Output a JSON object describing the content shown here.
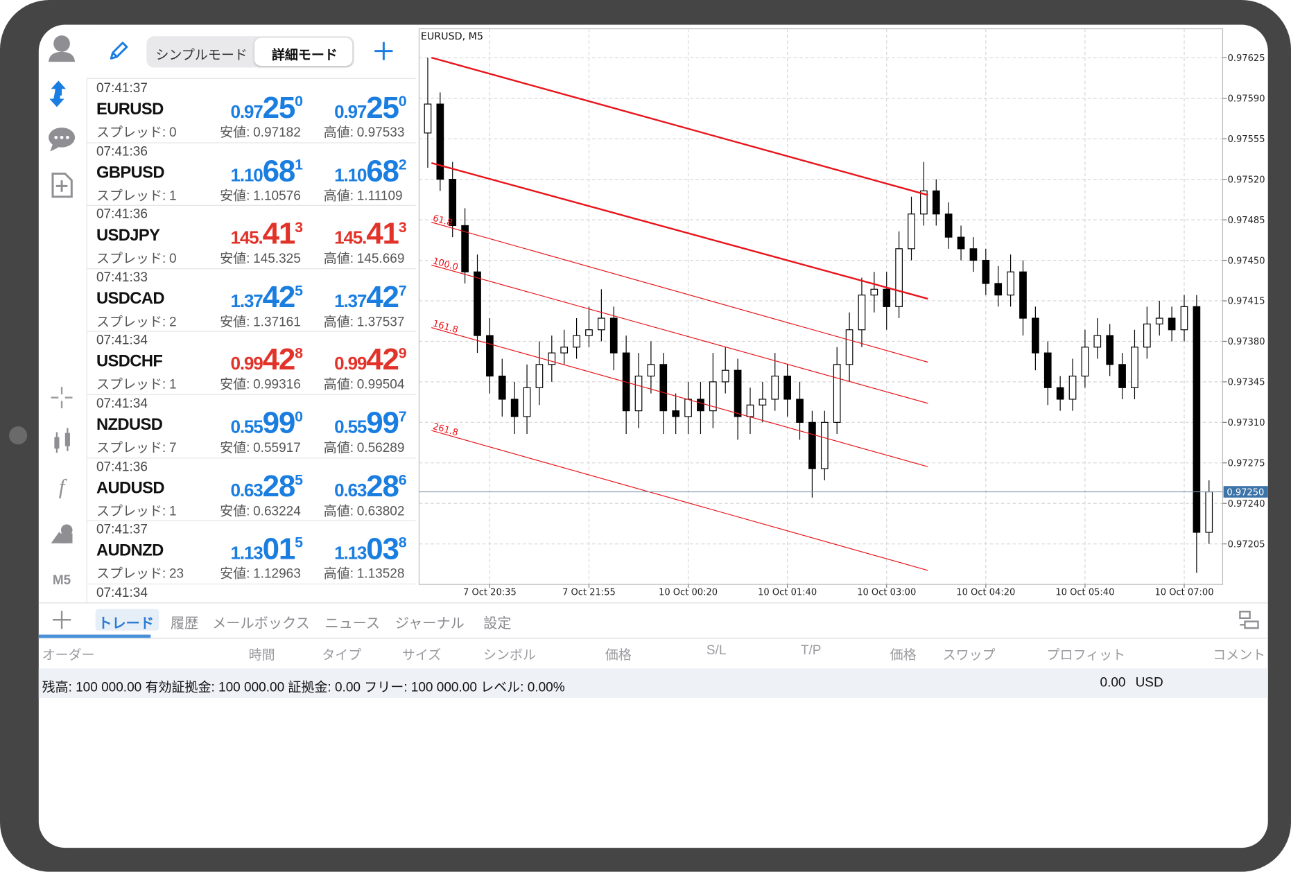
{
  "header": {
    "modes": [
      "シンプルモード",
      "詳細モード"
    ]
  },
  "sidebar": {
    "timeframe": "M5"
  },
  "quotes": {
    "spread_label": "スプレッド:",
    "low_label": "安値:",
    "high_label": "高値:",
    "partial_time": "07:41:34",
    "rows": [
      {
        "time": "07:41:37",
        "symbol": "EURUSD",
        "spread": 0,
        "direction": "up",
        "bid": [
          "0.97",
          "25",
          "0"
        ],
        "ask": [
          "0.97",
          "25",
          "0"
        ],
        "low": "0.97182",
        "high": "0.97533"
      },
      {
        "time": "07:41:36",
        "symbol": "GBPUSD",
        "spread": 1,
        "direction": "up",
        "bid": [
          "1.10",
          "68",
          "1"
        ],
        "ask": [
          "1.10",
          "68",
          "2"
        ],
        "low": "1.10576",
        "high": "1.11109"
      },
      {
        "time": "07:41:36",
        "symbol": "USDJPY",
        "spread": 0,
        "direction": "down",
        "bid": [
          "145.",
          "41",
          "3"
        ],
        "ask": [
          "145.",
          "41",
          "3"
        ],
        "low": "145.325",
        "high": "145.669"
      },
      {
        "time": "07:41:33",
        "symbol": "USDCAD",
        "spread": 2,
        "direction": "up",
        "bid": [
          "1.37",
          "42",
          "5"
        ],
        "ask": [
          "1.37",
          "42",
          "7"
        ],
        "low": "1.37161",
        "high": "1.37537"
      },
      {
        "time": "07:41:34",
        "symbol": "USDCHF",
        "spread": 1,
        "direction": "down",
        "bid": [
          "0.99",
          "42",
          "8"
        ],
        "ask": [
          "0.99",
          "42",
          "9"
        ],
        "low": "0.99316",
        "high": "0.99504"
      },
      {
        "time": "07:41:34",
        "symbol": "NZDUSD",
        "spread": 7,
        "direction": "up",
        "bid": [
          "0.55",
          "99",
          "0"
        ],
        "ask": [
          "0.55",
          "99",
          "7"
        ],
        "low": "0.55917",
        "high": "0.56289"
      },
      {
        "time": "07:41:36",
        "symbol": "AUDUSD",
        "spread": 1,
        "direction": "up",
        "bid": [
          "0.63",
          "28",
          "5"
        ],
        "ask": [
          "0.63",
          "28",
          "6"
        ],
        "low": "0.63224",
        "high": "0.63802"
      },
      {
        "time": "07:41:37",
        "symbol": "AUDNZD",
        "spread": 23,
        "direction": "up",
        "bid": [
          "1.13",
          "01",
          "5"
        ],
        "ask": [
          "1.13",
          "03",
          "8"
        ],
        "low": "1.12963",
        "high": "1.13528"
      }
    ]
  },
  "chart_data": {
    "type": "candlestick",
    "title": "EURUSD, M5",
    "categories": [
      null,
      null,
      null,
      null,
      null,
      null,
      null,
      null,
      null,
      null,
      null,
      null,
      null,
      null,
      null,
      null,
      null,
      null,
      null,
      null,
      null,
      null,
      null,
      null,
      null,
      null,
      null,
      null,
      null,
      null,
      null,
      null,
      null,
      null,
      null,
      null,
      null,
      null,
      null,
      null,
      null,
      null,
      null,
      null,
      null,
      null,
      null,
      null,
      null,
      null,
      null,
      null,
      null,
      null,
      null,
      null,
      null,
      null,
      null,
      null,
      null,
      null,
      null,
      null
    ],
    "open": [
      0.9756,
      0.97585,
      0.9752,
      0.9748,
      0.9744,
      0.97385,
      0.9735,
      0.9733,
      0.97315,
      0.9734,
      0.9736,
      0.9737,
      0.97375,
      0.97385,
      0.9739,
      0.974,
      0.9737,
      0.9732,
      0.9735,
      0.9736,
      0.9732,
      0.97315,
      0.9733,
      0.9732,
      0.97345,
      0.97355,
      0.97315,
      0.97325,
      0.9733,
      0.9735,
      0.9733,
      0.9731,
      0.9727,
      0.9731,
      0.9736,
      0.9739,
      0.9742,
      0.97425,
      0.9741,
      0.9746,
      0.9749,
      0.9751,
      0.9749,
      0.9747,
      0.9746,
      0.9745,
      0.9743,
      0.9742,
      0.9744,
      0.974,
      0.9737,
      0.9734,
      0.9733,
      0.9735,
      0.97375,
      0.97385,
      0.9736,
      0.9734,
      0.97375,
      0.97395,
      0.974,
      0.9739,
      0.9741,
      0.97215
    ],
    "high": [
      0.97625,
      0.97595,
      0.97535,
      0.97495,
      0.97455,
      0.974,
      0.97365,
      0.97345,
      0.9736,
      0.9738,
      0.97385,
      0.9739,
      0.974,
      0.9741,
      0.97425,
      0.9741,
      0.97385,
      0.9737,
      0.9738,
      0.9737,
      0.97335,
      0.97345,
      0.97345,
      0.9737,
      0.97375,
      0.97365,
      0.9734,
      0.97345,
      0.9737,
      0.9736,
      0.97345,
      0.9732,
      0.9732,
      0.97375,
      0.97405,
      0.97435,
      0.9744,
      0.9744,
      0.97475,
      0.97505,
      0.97535,
      0.9752,
      0.975,
      0.9748,
      0.9747,
      0.9746,
      0.97445,
      0.97455,
      0.9745,
      0.9741,
      0.9738,
      0.9735,
      0.97365,
      0.9739,
      0.974,
      0.97395,
      0.9737,
      0.9739,
      0.9741,
      0.97415,
      0.9741,
      0.9742,
      0.9742,
      0.9726
    ],
    "low": [
      0.9753,
      0.9751,
      0.9747,
      0.9743,
      0.9737,
      0.97335,
      0.97315,
      0.973,
      0.973,
      0.97325,
      0.97345,
      0.9736,
      0.97365,
      0.97375,
      0.9738,
      0.97355,
      0.973,
      0.97305,
      0.97335,
      0.973,
      0.973,
      0.973,
      0.973,
      0.97305,
      0.97335,
      0.97295,
      0.973,
      0.9731,
      0.9732,
      0.97315,
      0.97295,
      0.97245,
      0.9726,
      0.973,
      0.97345,
      0.97375,
      0.97405,
      0.9739,
      0.974,
      0.9745,
      0.9748,
      0.9748,
      0.9746,
      0.9745,
      0.9744,
      0.9742,
      0.9741,
      0.9741,
      0.97385,
      0.97355,
      0.97325,
      0.9732,
      0.9732,
      0.9734,
      0.97365,
      0.9735,
      0.9733,
      0.9733,
      0.97365,
      0.97385,
      0.9738,
      0.9738,
      0.9718,
      0.97205
    ],
    "close": [
      0.97585,
      0.9752,
      0.9748,
      0.9744,
      0.97385,
      0.9735,
      0.9733,
      0.97315,
      0.9734,
      0.9736,
      0.9737,
      0.97375,
      0.97385,
      0.9739,
      0.974,
      0.9737,
      0.9732,
      0.9735,
      0.9736,
      0.9732,
      0.97315,
      0.9733,
      0.9732,
      0.97345,
      0.97355,
      0.97315,
      0.97325,
      0.9733,
      0.9735,
      0.9733,
      0.9731,
      0.9727,
      0.9731,
      0.9736,
      0.9739,
      0.9742,
      0.97425,
      0.9741,
      0.9746,
      0.9749,
      0.9751,
      0.9749,
      0.9747,
      0.9746,
      0.9745,
      0.9743,
      0.9742,
      0.9744,
      0.974,
      0.9737,
      0.9734,
      0.9733,
      0.9735,
      0.97375,
      0.97385,
      0.9736,
      0.9734,
      0.97375,
      0.97395,
      0.974,
      0.9739,
      0.9741,
      0.97215,
      0.9725
    ],
    "up_color": "#ffffff",
    "down_color": "#000000",
    "xlim": [
      -0.7,
      64.1
    ],
    "ylim": [
      0.9717,
      0.9765
    ],
    "xticks": [
      {
        "value": 5,
        "label": "7 Oct 20:35"
      },
      {
        "value": 13,
        "label": "7 Oct 21:55"
      },
      {
        "value": 21,
        "label": "10 Oct 00:20"
      },
      {
        "value": 29,
        "label": "10 Oct 01:40"
      },
      {
        "value": 37,
        "label": "10 Oct 03:00"
      },
      {
        "value": 45,
        "label": "10 Oct 04:20"
      },
      {
        "value": 53,
        "label": "10 Oct 05:40"
      },
      {
        "value": 61,
        "label": "10 Oct 07:00"
      }
    ],
    "yticks": [
      0.97625,
      {
        "value": 0.9759,
        "label": "0.97590"
      },
      0.97555,
      {
        "value": 0.9752,
        "label": "0.97520"
      },
      0.97485,
      {
        "value": 0.9745,
        "label": "0.97450"
      },
      0.97415,
      {
        "value": 0.9738,
        "label": "0.97380"
      },
      0.97345,
      {
        "value": 0.9731,
        "label": "0.97310"
      },
      0.97275,
      {
        "value": 0.9724,
        "label": "0.97240"
      },
      0.97205
    ],
    "current_price": {
      "value": 0.9725,
      "label": "0.97250"
    },
    "channel_levels": [
      "61.8",
      "100.0",
      "161.8",
      "261.8"
    ],
    "grid": true
  },
  "tabs": [
    "トレード",
    "履歴",
    "メールボックス",
    "ニュース",
    "ジャーナル",
    "設定"
  ],
  "columns": [
    "オーダー",
    "時間",
    "タイプ",
    "サイズ",
    "シンボル",
    "価格",
    "S/L",
    "T/P",
    "価格",
    "スワップ",
    "プロフィット",
    "コメント"
  ],
  "summary": {
    "text": "残高: 100 000.00 有効証拠金: 100 000.00 証拠金: 0.00 フリー: 100 000.00 レベル: 0.00%",
    "profit": "0.00",
    "currency": "USD"
  }
}
